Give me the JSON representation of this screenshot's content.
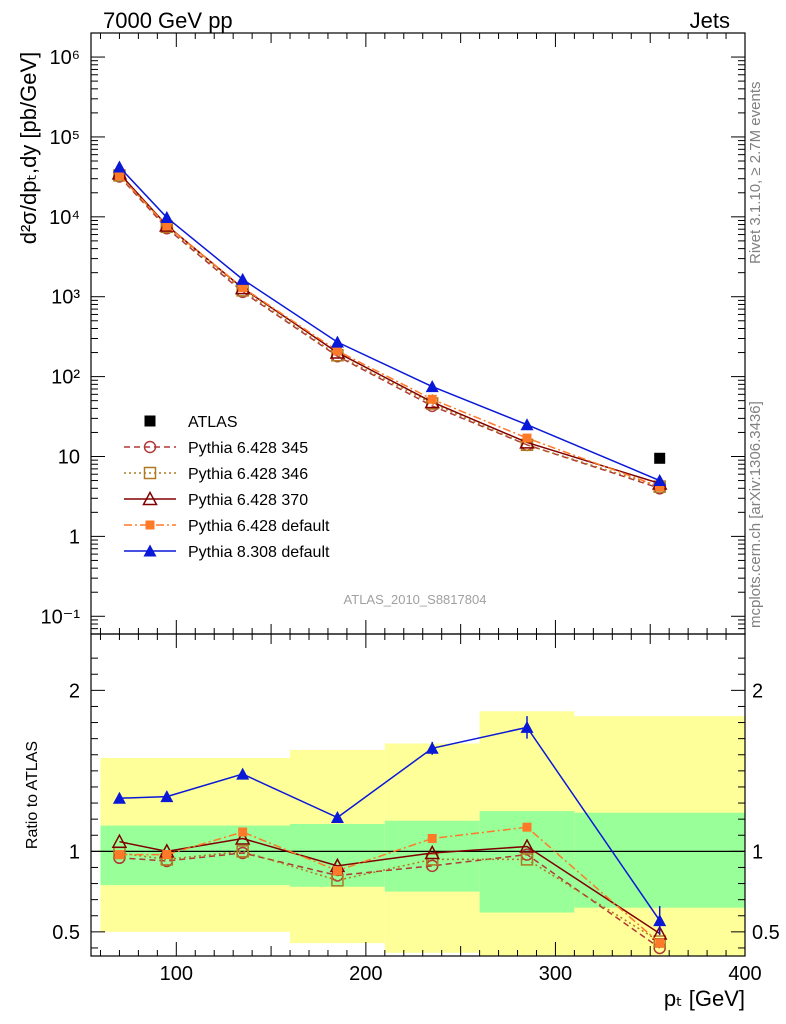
{
  "header": {
    "left": "7000 GeV pp",
    "right": "Jets"
  },
  "side_labels": {
    "rivet": "Rivet 3.1.10, ≥ 2.7M events",
    "mcplots": "mcplots.cern.ch [arXiv:1306.3436]"
  },
  "analysis_id": "ATLAS_2010_S8817804",
  "axes": {
    "ylabel_top": "d²σ/dpₜ,dy [pb/GeV]",
    "ylabel_bottom": "Ratio to ATLAS",
    "xlabel": "pₜ [GeV]"
  },
  "chart_data": [
    {
      "type": "line",
      "panel": "main",
      "yscale": "log",
      "xlim": [
        55,
        400
      ],
      "ylim": [
        0.06,
        2000000
      ],
      "x_ticks": [
        100,
        200,
        300,
        400
      ],
      "y_ticks": [
        {
          "value": 0.1,
          "label": "10⁻¹"
        },
        {
          "value": 1,
          "label": "1"
        },
        {
          "value": 10,
          "label": "10"
        },
        {
          "value": 100,
          "label": "10²"
        },
        {
          "value": 1000,
          "label": "10³"
        },
        {
          "value": 10000,
          "label": "10⁴"
        },
        {
          "value": 100000,
          "label": "10⁵"
        },
        {
          "value": 1000000,
          "label": "10⁶"
        }
      ],
      "legend_position": "bottom-left",
      "series": [
        {
          "name": "ATLAS",
          "color": "#000000",
          "marker": "square",
          "line": "none",
          "x": [
            355
          ],
          "y": [
            9.5
          ]
        },
        {
          "name": "Pythia 6.428 345",
          "color": "#b03838",
          "marker": "circle-open",
          "line": "dashed",
          "x": [
            70,
            95,
            135,
            185,
            235,
            285,
            355
          ],
          "y": [
            32000,
            7200,
            1150,
            180,
            43,
            14,
            4.0
          ]
        },
        {
          "name": "Pythia 6.428 346",
          "color": "#b07820",
          "marker": "square-open",
          "line": "dotted",
          "x": [
            70,
            95,
            135,
            185,
            235,
            285,
            355
          ],
          "y": [
            33000,
            7500,
            1200,
            185,
            46,
            14,
            4.2
          ]
        },
        {
          "name": "Pythia 6.428 370",
          "color": "#800000",
          "marker": "triangle-open",
          "line": "solid",
          "x": [
            70,
            95,
            135,
            185,
            235,
            285,
            355
          ],
          "y": [
            35000,
            7800,
            1280,
            200,
            48,
            15,
            4.6
          ]
        },
        {
          "name": "Pythia 6.428 default",
          "color": "#ff7a28",
          "marker": "square-filled",
          "line": "dashdot",
          "x": [
            70,
            95,
            135,
            185,
            235,
            285,
            355
          ],
          "y": [
            33000,
            7700,
            1300,
            210,
            52,
            17,
            4.2
          ]
        },
        {
          "name": "Pythia 8.308 default",
          "color": "#0a18d8",
          "marker": "triangle-filled",
          "line": "solid",
          "x": [
            70,
            95,
            135,
            185,
            235,
            285,
            355
          ],
          "y": [
            42000,
            9800,
            1650,
            270,
            75,
            25,
            5.0
          ]
        }
      ]
    },
    {
      "type": "line",
      "panel": "ratio",
      "xlim": [
        55,
        400
      ],
      "ylim": [
        0.35,
        2.35
      ],
      "y_ticks": [
        0.5,
        1,
        2
      ],
      "reference_line": 1,
      "bands": [
        {
          "x0": 60,
          "x1": 160,
          "inner": [
            0.79,
            1.16
          ],
          "outer": [
            0.5,
            1.58
          ]
        },
        {
          "x0": 160,
          "x1": 210,
          "inner": [
            0.78,
            1.17
          ],
          "outer": [
            0.43,
            1.63
          ]
        },
        {
          "x0": 210,
          "x1": 260,
          "inner": [
            0.75,
            1.19
          ],
          "outer": [
            0.37,
            1.67
          ]
        },
        {
          "x0": 260,
          "x1": 310,
          "inner": [
            0.62,
            1.25
          ],
          "outer": [
            0.35,
            1.87
          ]
        },
        {
          "x0": 310,
          "x1": 400,
          "inner": [
            0.65,
            1.24
          ],
          "outer": [
            0.35,
            1.84
          ]
        }
      ],
      "series": [
        {
          "name": "Pythia 6.428 345",
          "color": "#b03838",
          "marker": "circle-open",
          "line": "dashed",
          "x": [
            70,
            95,
            135,
            185,
            235,
            285,
            355
          ],
          "y": [
            0.96,
            0.94,
            0.99,
            0.85,
            0.91,
            0.98,
            0.4
          ]
        },
        {
          "name": "Pythia 6.428 346",
          "color": "#b07820",
          "marker": "square-open",
          "line": "dotted",
          "x": [
            70,
            95,
            135,
            185,
            235,
            285,
            355
          ],
          "y": [
            0.99,
            0.95,
            1.0,
            0.82,
            0.95,
            0.95,
            0.44
          ]
        },
        {
          "name": "Pythia 6.428 370",
          "color": "#800000",
          "marker": "triangle-open",
          "line": "solid",
          "x": [
            70,
            95,
            135,
            185,
            235,
            285,
            355
          ],
          "y": [
            1.06,
            1.0,
            1.08,
            0.91,
            0.99,
            1.03,
            0.49
          ]
        },
        {
          "name": "Pythia 6.428 default",
          "color": "#ff7a28",
          "marker": "square-filled",
          "line": "dashdot",
          "x": [
            70,
            95,
            135,
            185,
            235,
            285,
            355
          ],
          "y": [
            0.98,
            0.98,
            1.12,
            0.88,
            1.08,
            1.15,
            0.43
          ]
        },
        {
          "name": "Pythia 8.308 default",
          "color": "#0a18d8",
          "marker": "triangle-filled",
          "line": "solid",
          "x": [
            70,
            95,
            135,
            185,
            235,
            285,
            355
          ],
          "y": [
            1.33,
            1.34,
            1.48,
            1.21,
            1.64,
            1.77,
            0.57
          ],
          "yerr": [
            0,
            0,
            0,
            0,
            0.04,
            0.07,
            0.09
          ]
        }
      ]
    }
  ]
}
